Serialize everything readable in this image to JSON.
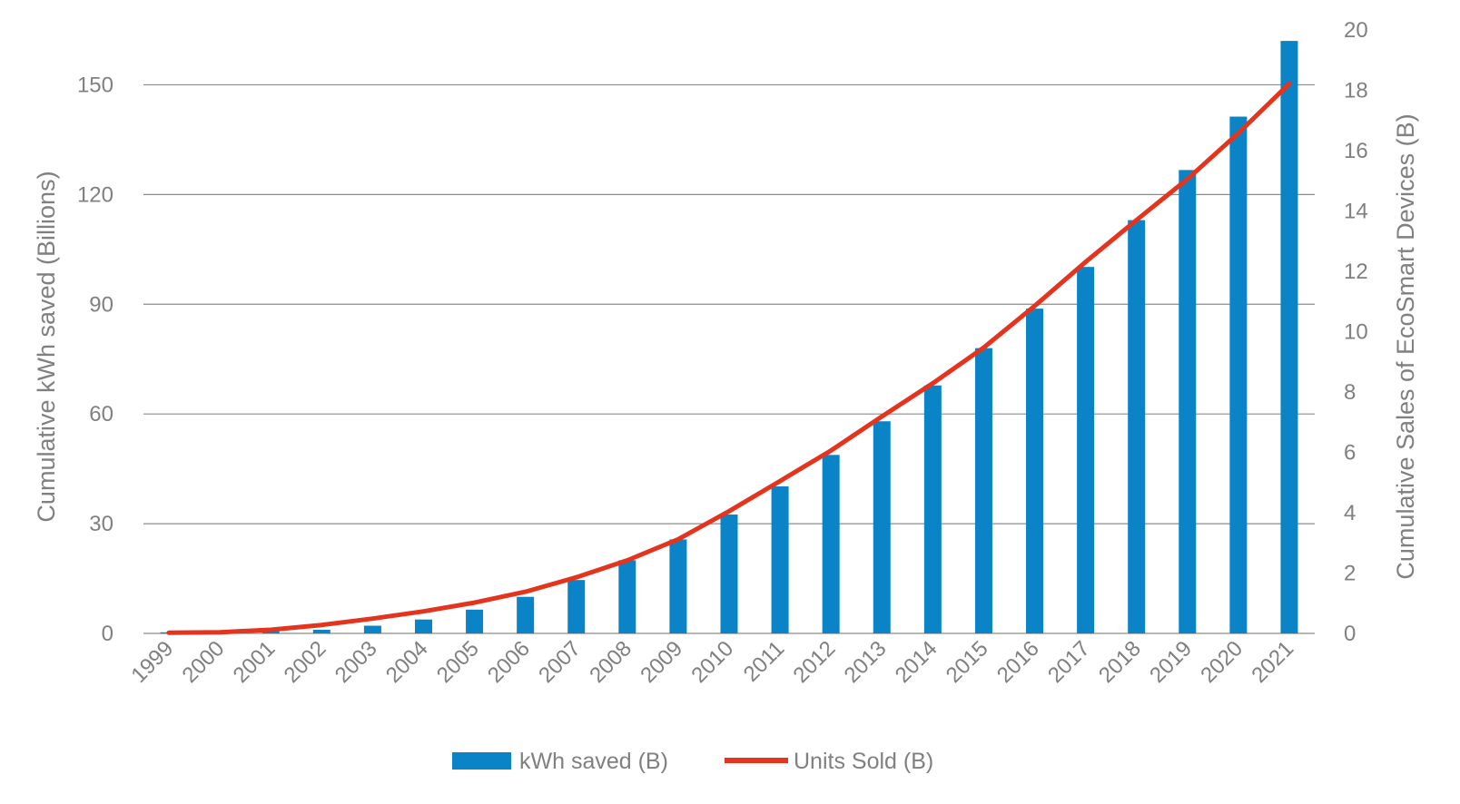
{
  "chart_data": {
    "type": "bar",
    "categories": [
      "1999",
      "2000",
      "2001",
      "2002",
      "2003",
      "2004",
      "2005",
      "2006",
      "2007",
      "2008",
      "2009",
      "2010",
      "2011",
      "2012",
      "2013",
      "2014",
      "2015",
      "2016",
      "2017",
      "2018",
      "2019",
      "2020",
      "2021"
    ],
    "series": [
      {
        "name": "kWh saved (B)",
        "type": "bar",
        "axis": "left",
        "values": [
          0.3,
          0.4,
          0.6,
          1.0,
          2.1,
          3.8,
          6.5,
          10.0,
          14.6,
          20.0,
          25.7,
          32.5,
          40.2,
          48.8,
          58.0,
          67.8,
          78.0,
          88.8,
          100.2,
          113.0,
          126.7,
          141.3,
          162.0
        ]
      },
      {
        "name": "Units Sold (B)",
        "type": "line",
        "axis": "right",
        "values": [
          0.02,
          0.04,
          0.12,
          0.28,
          0.49,
          0.73,
          1.02,
          1.38,
          1.86,
          2.42,
          3.12,
          4.05,
          5.05,
          6.06,
          7.19,
          8.29,
          9.47,
          10.85,
          12.31,
          13.7,
          15.06,
          16.58,
          18.22
        ]
      }
    ],
    "ylabel": "Cumulative kWh saved (Billions)",
    "y2label": "Cumulative Sales of EcoSmart Devices (B)",
    "ylim": [
      0,
      165
    ],
    "y2lim": [
      0,
      20
    ],
    "yticks": [
      0,
      30,
      60,
      90,
      120,
      150
    ],
    "y2ticks": [
      0,
      2,
      4,
      6,
      8,
      10,
      12,
      14,
      16,
      18,
      20
    ],
    "grid": true,
    "legend_position": "bottom",
    "colors": {
      "bar": "#0a84c6",
      "line": "#e5341e",
      "grid": "#8c8c8c",
      "text": "#808080"
    }
  }
}
